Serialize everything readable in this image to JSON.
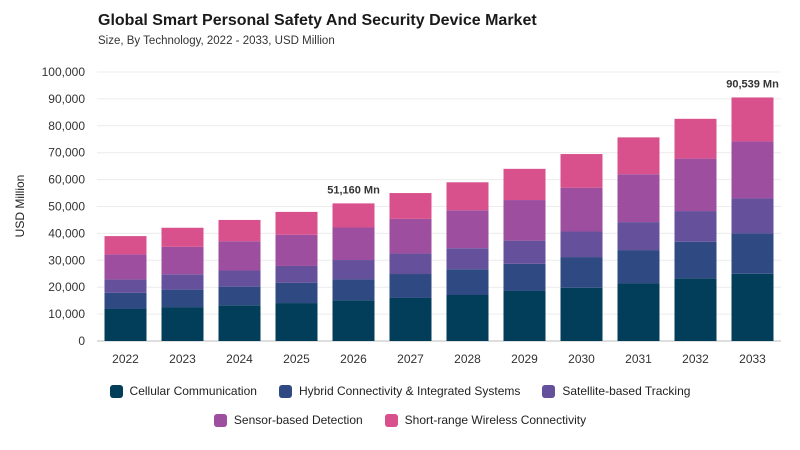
{
  "header": {
    "title": "Global Smart Personal Safety And Security Device Market",
    "subtitle": "Size, By Technology, 2022 - 2033, USD Million"
  },
  "chart_data": {
    "type": "bar",
    "stacked": true,
    "categories": [
      "2022",
      "2023",
      "2024",
      "2025",
      "2026",
      "2027",
      "2028",
      "2029",
      "2030",
      "2031",
      "2032",
      "2033"
    ],
    "series": [
      {
        "name": "Cellular Communication",
        "color": "#023e5a",
        "values": [
          11900,
          12600,
          13300,
          14100,
          15100,
          16000,
          17100,
          18600,
          19800,
          21400,
          23300,
          25000
        ]
      },
      {
        "name": "Hybrid Connectivity & Integrated Systems",
        "color": "#2f4a82",
        "values": [
          6000,
          6500,
          6900,
          7500,
          7800,
          8900,
          9600,
          10100,
          11400,
          12400,
          13600,
          15000
        ]
      },
      {
        "name": "Satellite-based Tracking",
        "color": "#65509b",
        "values": [
          5000,
          5700,
          6000,
          6300,
          7200,
          7600,
          7800,
          8600,
          9500,
          10400,
          11400,
          13000
        ]
      },
      {
        "name": "Sensor-based Detection",
        "color": "#9e4e9e",
        "values": [
          9300,
          10200,
          10900,
          11600,
          12100,
          12900,
          14100,
          15100,
          16300,
          17800,
          19500,
          21200
        ]
      },
      {
        "name": "Short-range Wireless Connectivity",
        "color": "#d8508c",
        "values": [
          6800,
          7100,
          7900,
          8500,
          8960,
          9600,
          10400,
          11600,
          12500,
          13700,
          14800,
          16339
        ]
      }
    ],
    "ylabel": "USD Million",
    "xlabel": "",
    "ylim": [
      0,
      100000
    ],
    "yticks": [
      "0",
      "10,000",
      "20,000",
      "30,000",
      "40,000",
      "50,000",
      "60,000",
      "70,000",
      "80,000",
      "90,000",
      "100,000"
    ],
    "annotations": [
      {
        "category": "2026",
        "text": "51,160 Mn"
      },
      {
        "category": "2033",
        "text": "90,539 Mn"
      }
    ],
    "grid": true,
    "legend_position": "bottom"
  }
}
